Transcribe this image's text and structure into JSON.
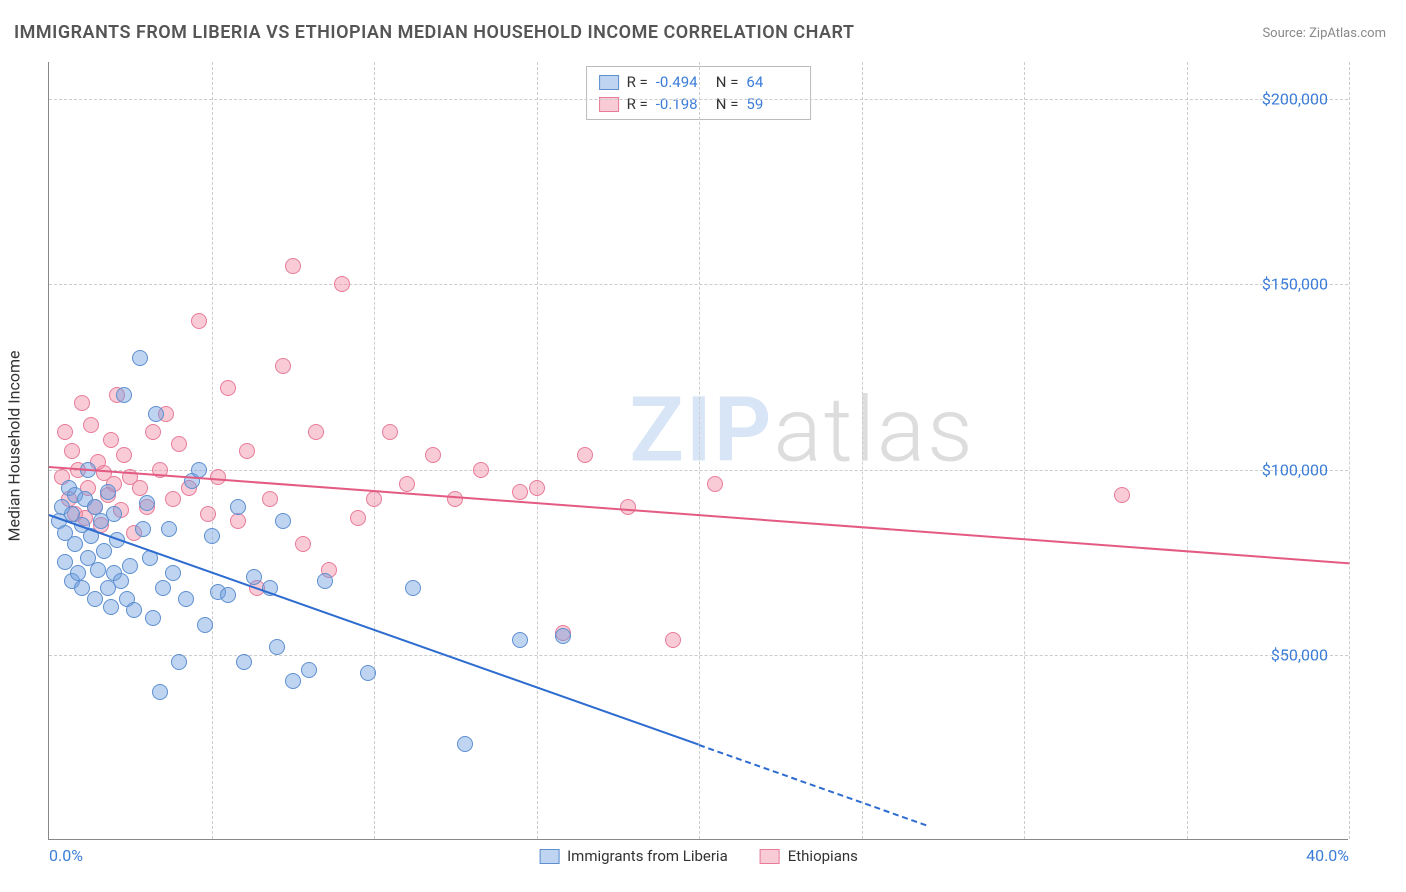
{
  "title": "IMMIGRANTS FROM LIBERIA VS ETHIOPIAN MEDIAN HOUSEHOLD INCOME CORRELATION CHART",
  "source_label": "Source:",
  "source_name": "ZipAtlas.com",
  "y_axis_title": "Median Household Income",
  "watermark_zip": "ZIP",
  "watermark_atlas": "atlas",
  "chart": {
    "type": "scatter",
    "xlim": [
      0,
      40
    ],
    "ylim": [
      0,
      210000
    ],
    "x_ticks": [
      0,
      40
    ],
    "x_tick_labels": [
      "0.0%",
      "40.0%"
    ],
    "y_ticks": [
      50000,
      100000,
      150000,
      200000
    ],
    "y_tick_labels": [
      "$50,000",
      "$100,000",
      "$150,000",
      "$200,000"
    ],
    "x_gridlines": [
      5,
      10,
      15,
      20,
      25,
      30,
      35,
      40
    ],
    "y_gridlines": [
      50000,
      100000,
      150000,
      200000
    ],
    "background_color": "#ffffff",
    "grid_color": "#cccccc",
    "axis_color": "#888888",
    "tick_label_color": "#3b7dd8",
    "marker_radius": 8,
    "marker_stroke_width": 1,
    "series": [
      {
        "name": "Immigrants from Liberia",
        "color_fill": "rgba(110,160,225,0.45)",
        "color_stroke": "#5e8fd0",
        "line_color": "#2e6cd0",
        "r": -0.494,
        "n": 64,
        "trend": {
          "x1": 0,
          "y1": 88000,
          "x2": 20,
          "y2": 26000,
          "dash_to_x": 27
        },
        "points": [
          [
            0.3,
            86000
          ],
          [
            0.4,
            90000
          ],
          [
            0.5,
            75000
          ],
          [
            0.5,
            83000
          ],
          [
            0.6,
            95000
          ],
          [
            0.7,
            70000
          ],
          [
            0.7,
            88000
          ],
          [
            0.8,
            80000
          ],
          [
            0.8,
            93000
          ],
          [
            0.9,
            72000
          ],
          [
            1.0,
            85000
          ],
          [
            1.0,
            68000
          ],
          [
            1.1,
            92000
          ],
          [
            1.2,
            76000
          ],
          [
            1.2,
            100000
          ],
          [
            1.3,
            82000
          ],
          [
            1.4,
            65000
          ],
          [
            1.4,
            90000
          ],
          [
            1.5,
            73000
          ],
          [
            1.6,
            86000
          ],
          [
            1.7,
            78000
          ],
          [
            1.8,
            68000
          ],
          [
            1.8,
            94000
          ],
          [
            1.9,
            63000
          ],
          [
            2.0,
            72000
          ],
          [
            2.0,
            88000
          ],
          [
            2.1,
            81000
          ],
          [
            2.2,
            70000
          ],
          [
            2.3,
            120000
          ],
          [
            2.4,
            65000
          ],
          [
            2.5,
            74000
          ],
          [
            2.6,
            62000
          ],
          [
            2.8,
            130000
          ],
          [
            2.9,
            84000
          ],
          [
            3.0,
            91000
          ],
          [
            3.1,
            76000
          ],
          [
            3.2,
            60000
          ],
          [
            3.3,
            115000
          ],
          [
            3.4,
            40000
          ],
          [
            3.5,
            68000
          ],
          [
            3.7,
            84000
          ],
          [
            3.8,
            72000
          ],
          [
            4.0,
            48000
          ],
          [
            4.2,
            65000
          ],
          [
            4.4,
            97000
          ],
          [
            4.6,
            100000
          ],
          [
            4.8,
            58000
          ],
          [
            5.0,
            82000
          ],
          [
            5.2,
            67000
          ],
          [
            5.5,
            66000
          ],
          [
            5.8,
            90000
          ],
          [
            6.0,
            48000
          ],
          [
            6.3,
            71000
          ],
          [
            6.8,
            68000
          ],
          [
            7.0,
            52000
          ],
          [
            7.2,
            86000
          ],
          [
            7.5,
            43000
          ],
          [
            8.0,
            46000
          ],
          [
            8.5,
            70000
          ],
          [
            9.8,
            45000
          ],
          [
            11.2,
            68000
          ],
          [
            12.8,
            26000
          ],
          [
            14.5,
            54000
          ],
          [
            15.8,
            55000
          ]
        ]
      },
      {
        "name": "Ethiopians",
        "color_fill": "rgba(240,140,165,0.45)",
        "color_stroke": "#e77b98",
        "line_color": "#e35a82",
        "r": -0.198,
        "n": 59,
        "trend": {
          "x1": 0,
          "y1": 101000,
          "x2": 40,
          "y2": 75000
        },
        "points": [
          [
            0.4,
            98000
          ],
          [
            0.5,
            110000
          ],
          [
            0.6,
            92000
          ],
          [
            0.7,
            105000
          ],
          [
            0.8,
            88000
          ],
          [
            0.9,
            100000
          ],
          [
            1.0,
            118000
          ],
          [
            1.1,
            87000
          ],
          [
            1.2,
            95000
          ],
          [
            1.3,
            112000
          ],
          [
            1.4,
            90000
          ],
          [
            1.5,
            102000
          ],
          [
            1.6,
            85000
          ],
          [
            1.7,
            99000
          ],
          [
            1.8,
            93000
          ],
          [
            1.9,
            108000
          ],
          [
            2.0,
            96000
          ],
          [
            2.1,
            120000
          ],
          [
            2.2,
            89000
          ],
          [
            2.3,
            104000
          ],
          [
            2.5,
            98000
          ],
          [
            2.6,
            83000
          ],
          [
            2.8,
            95000
          ],
          [
            3.0,
            90000
          ],
          [
            3.2,
            110000
          ],
          [
            3.4,
            100000
          ],
          [
            3.6,
            115000
          ],
          [
            3.8,
            92000
          ],
          [
            4.0,
            107000
          ],
          [
            4.3,
            95000
          ],
          [
            4.6,
            140000
          ],
          [
            4.9,
            88000
          ],
          [
            5.2,
            98000
          ],
          [
            5.5,
            122000
          ],
          [
            5.8,
            86000
          ],
          [
            6.1,
            105000
          ],
          [
            6.4,
            68000
          ],
          [
            6.8,
            92000
          ],
          [
            7.2,
            128000
          ],
          [
            7.5,
            155000
          ],
          [
            7.8,
            80000
          ],
          [
            8.2,
            110000
          ],
          [
            8.6,
            73000
          ],
          [
            9.0,
            150000
          ],
          [
            9.5,
            87000
          ],
          [
            10.0,
            92000
          ],
          [
            10.5,
            110000
          ],
          [
            11.0,
            96000
          ],
          [
            11.8,
            104000
          ],
          [
            12.5,
            92000
          ],
          [
            13.3,
            100000
          ],
          [
            14.5,
            94000
          ],
          [
            15.8,
            56000
          ],
          [
            16.5,
            104000
          ],
          [
            17.8,
            90000
          ],
          [
            19.2,
            54000
          ],
          [
            20.5,
            96000
          ],
          [
            33.0,
            93000
          ],
          [
            15.0,
            95000
          ]
        ]
      }
    ]
  },
  "legend_top": {
    "r_label": "R =",
    "n_label": "N ="
  },
  "legend_bottom": [
    "Immigrants from Liberia",
    "Ethiopians"
  ]
}
